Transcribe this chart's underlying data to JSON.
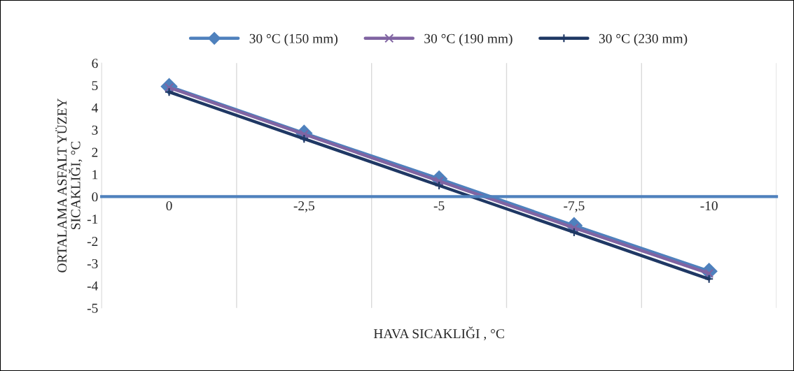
{
  "chart_data": {
    "type": "line",
    "categories": [
      "0",
      "-2,5",
      "-5",
      "-7,5",
      "-10"
    ],
    "series": [
      {
        "name": "30 °C (150 mm)",
        "color": "#4f81bd",
        "marker": "diamond",
        "values": [
          4.95,
          2.85,
          0.8,
          -1.3,
          -3.35
        ]
      },
      {
        "name": "30 °C (190 mm)",
        "color": "#8064a2",
        "marker": "cross",
        "values": [
          4.9,
          2.8,
          0.7,
          -1.4,
          -3.45
        ]
      },
      {
        "name": "30 °C (230 mm)",
        "color": "#1f3864",
        "marker": "plus",
        "values": [
          4.7,
          2.6,
          0.5,
          -1.6,
          -3.7
        ]
      }
    ],
    "xlabel": "HAVA SICAKLIĞI , °C",
    "ylabel": "ORTALAMA ASFALT YÜZEY\nSICAKLIĞI, °C",
    "ylim": [
      -5,
      6
    ],
    "yticks": [
      -5,
      -4,
      -3,
      -2,
      -1,
      0,
      1,
      2,
      3,
      4,
      5,
      6
    ],
    "grid": "x",
    "legend": "top",
    "line_style": "solid"
  }
}
